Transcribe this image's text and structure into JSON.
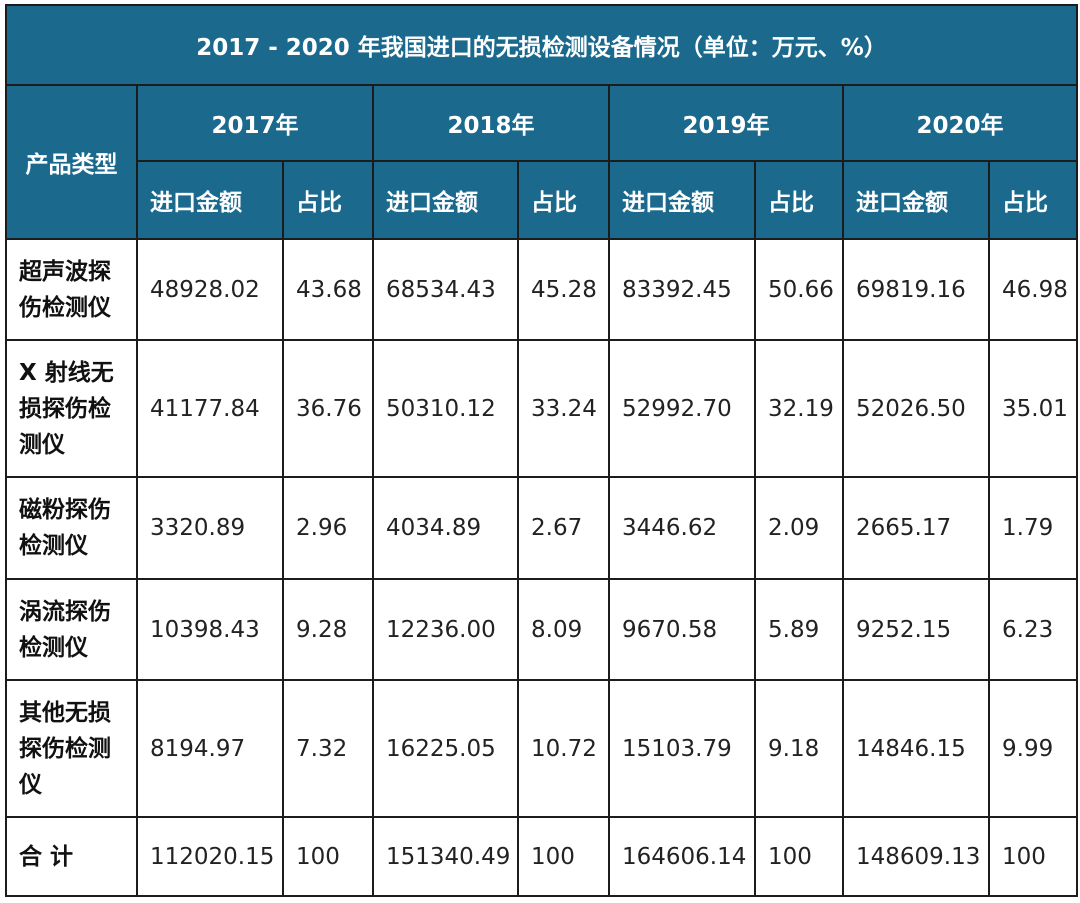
{
  "table": {
    "title": "2017 - 2020 年我国进口的无损检测设备情况（单位：万元、%）",
    "type_header": "产品类型",
    "years": [
      "2017年",
      "2018年",
      "2019年",
      "2020年"
    ],
    "sub_amount": "进口金额",
    "sub_share": "占比",
    "rows": [
      {
        "name": "超声波探伤检测仪",
        "cells": [
          "48928.02",
          "43.68",
          "68534.43",
          "45.28",
          "83392.45",
          "50.66",
          "69819.16",
          "46.98"
        ]
      },
      {
        "name": "X 射线无损探伤检测仪",
        "cells": [
          "41177.84",
          "36.76",
          "50310.12",
          "33.24",
          "52992.70",
          "32.19",
          "52026.50",
          "35.01"
        ]
      },
      {
        "name": "磁粉探伤检测仪",
        "cells": [
          "3320.89",
          "2.96",
          "4034.89",
          "2.67",
          "3446.62",
          "2.09",
          "2665.17",
          "1.79"
        ]
      },
      {
        "name": "涡流探伤检测仪",
        "cells": [
          "10398.43",
          "9.28",
          "12236.00",
          "8.09",
          "9670.58",
          "5.89",
          "9252.15",
          "6.23"
        ]
      },
      {
        "name": "其他无损探伤检测仪",
        "cells": [
          "8194.97",
          "7.32",
          "16225.05",
          "10.72",
          "15103.79",
          "9.18",
          "14846.15",
          "9.99"
        ]
      },
      {
        "name": "合 计",
        "cells": [
          "112020.15",
          "100",
          "151340.49",
          "100",
          "164606.14",
          "100",
          "148609.13",
          "100"
        ]
      }
    ]
  },
  "colors": {
    "header_bg": "#1b6a8e",
    "header_text": "#ffffff",
    "border": "#1c1c1c"
  }
}
